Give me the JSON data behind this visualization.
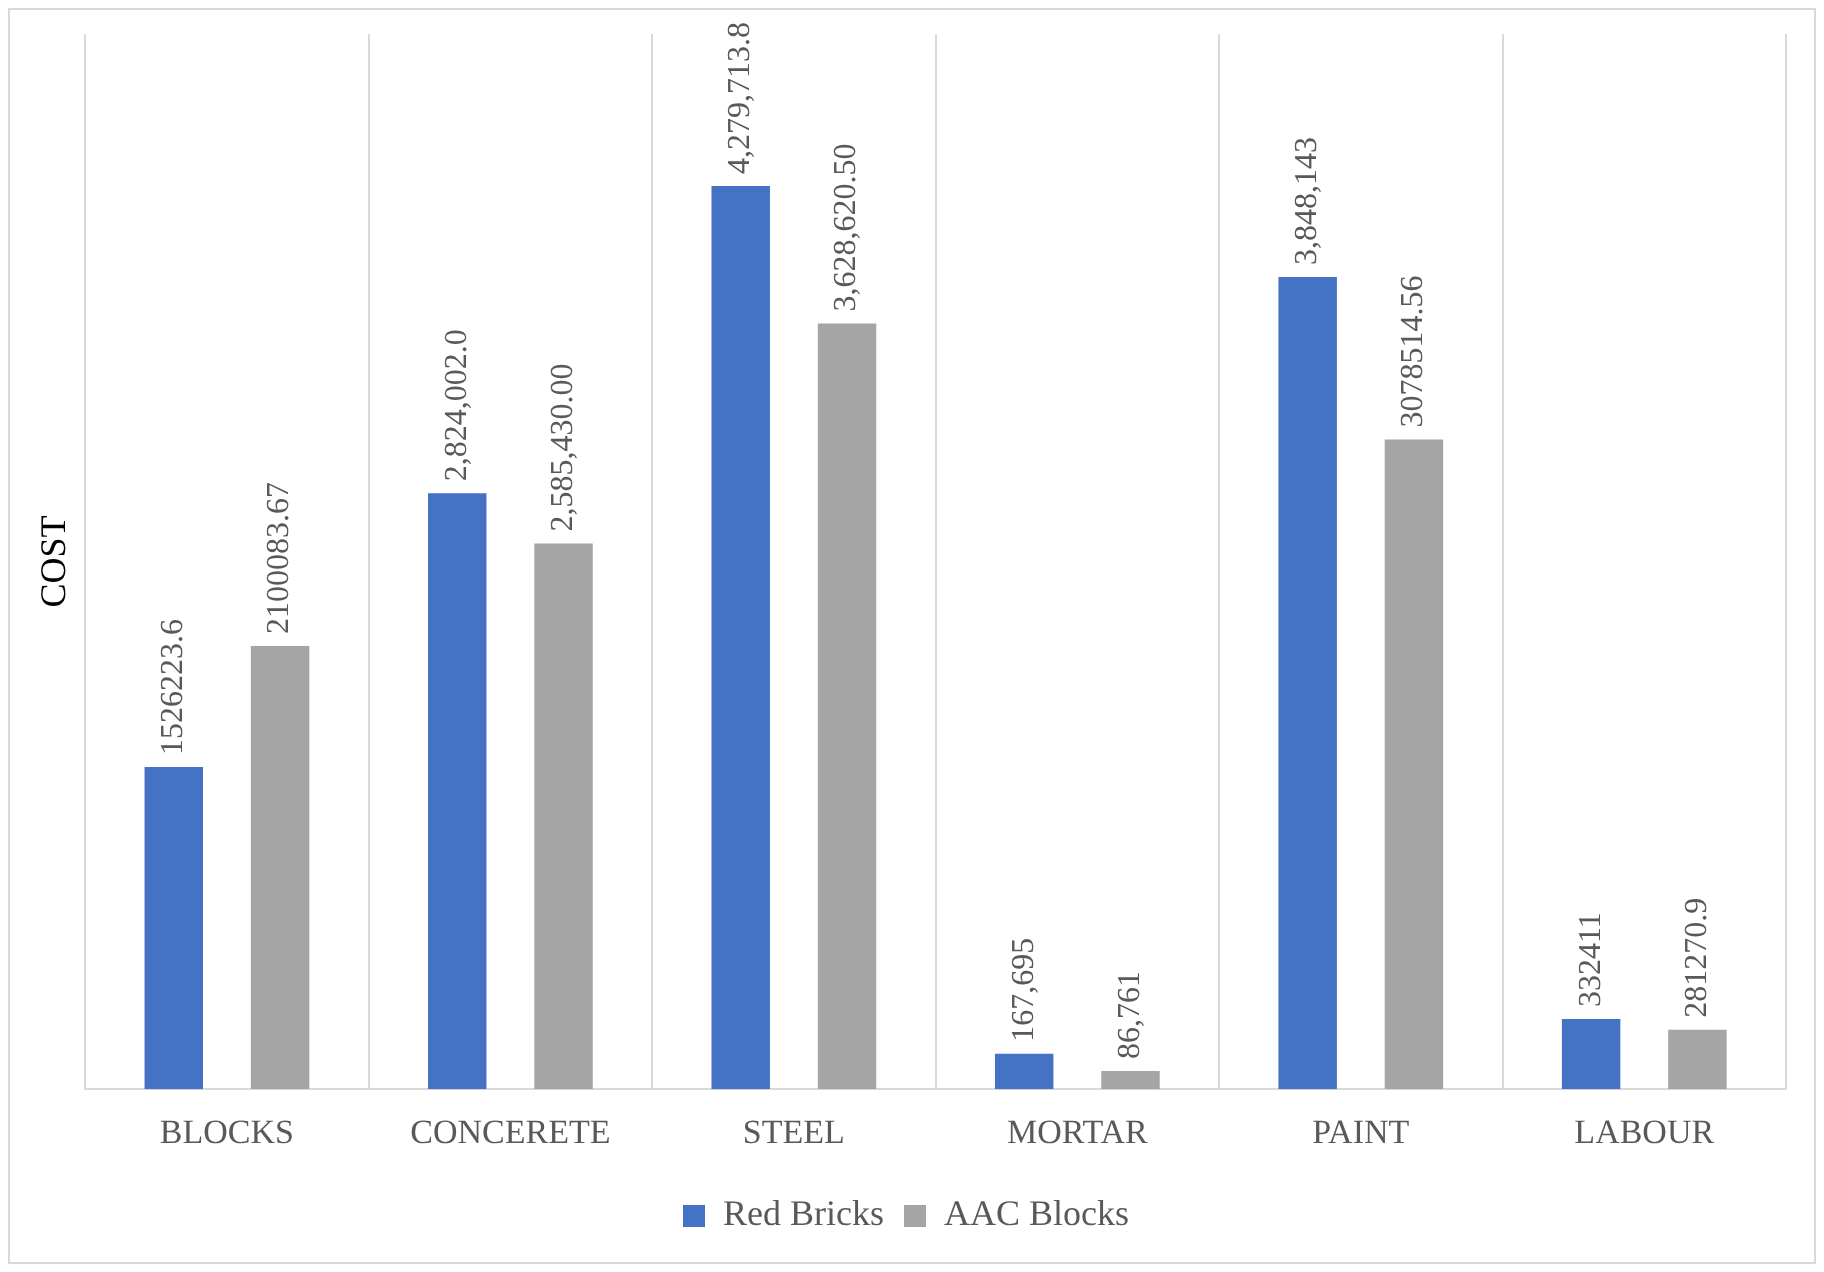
{
  "chart_data": {
    "type": "bar",
    "ylabel": "COST",
    "categories": [
      "BLOCKS",
      "CONCERETE",
      "STEEL",
      "MORTAR",
      "PAINT",
      "LABOUR"
    ],
    "series": [
      {
        "name": "Red Bricks",
        "color": "#4472c4",
        "values": [
          1526223.6,
          2824002.0,
          4279713.8,
          167695,
          3848143,
          332411
        ],
        "value_labels": [
          "1526223.6",
          "2,824,002.0",
          "4,279,713.8",
          "167,695",
          "3,848,143",
          "332411"
        ]
      },
      {
        "name": "AAC Blocks",
        "color": "#a5a5a5",
        "values": [
          2100083.67,
          2585430.0,
          3628620.5,
          86761,
          3078514.56,
          281270.9
        ],
        "value_labels": [
          "2100083.67",
          "2,585,430.00",
          "3,628,620.50",
          "86,761",
          "3078514.56",
          "281270.9"
        ]
      }
    ],
    "grid": "x",
    "legend": "bottom",
    "tick_labels": "x"
  }
}
